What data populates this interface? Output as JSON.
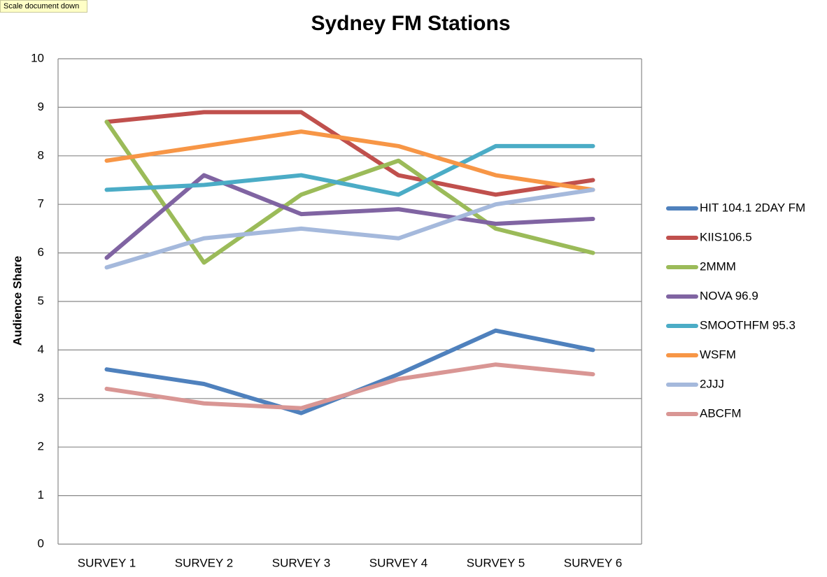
{
  "tooltip": "Scale document down",
  "chart_data": {
    "type": "line",
    "title": "Sydney FM Stations",
    "y_label": "Audience Share",
    "categories": [
      "SURVEY 1",
      "SURVEY 2",
      "SURVEY 3",
      "SURVEY 4",
      "SURVEY 5",
      "SURVEY 6"
    ],
    "ylim": [
      0,
      10
    ],
    "yticks": [
      0,
      1,
      2,
      3,
      4,
      5,
      6,
      7,
      8,
      9,
      10
    ],
    "grid": true,
    "legend": "right",
    "series": [
      {
        "name": "HIT 104.1 2DAY FM",
        "color": "#4f81bd",
        "values": [
          3.6,
          3.3,
          2.7,
          3.5,
          4.4,
          4.0
        ]
      },
      {
        "name": "KIIS106.5",
        "color": "#c0504d",
        "values": [
          8.7,
          8.9,
          8.9,
          7.6,
          7.2,
          7.5
        ]
      },
      {
        "name": "2MMM",
        "color": "#9bbb59",
        "values": [
          8.7,
          5.8,
          7.2,
          7.9,
          6.5,
          6.0
        ]
      },
      {
        "name": "NOVA 96.9",
        "color": "#8064a2",
        "values": [
          5.9,
          7.6,
          6.8,
          6.9,
          6.6,
          6.7
        ]
      },
      {
        "name": "SMOOTHFM 95.3",
        "color": "#4bacc6",
        "values": [
          7.3,
          7.4,
          7.6,
          7.2,
          8.2,
          8.2
        ]
      },
      {
        "name": "WSFM",
        "color": "#f79646",
        "values": [
          7.9,
          8.2,
          8.5,
          8.2,
          7.6,
          7.3
        ]
      },
      {
        "name": "2JJJ",
        "color": "#a5b9dc",
        "values": [
          5.7,
          6.3,
          6.5,
          6.3,
          7.0,
          7.3
        ]
      },
      {
        "name": "ABCFM",
        "color": "#d99694",
        "values": [
          3.2,
          2.9,
          2.8,
          3.4,
          3.7,
          3.5
        ]
      }
    ]
  }
}
